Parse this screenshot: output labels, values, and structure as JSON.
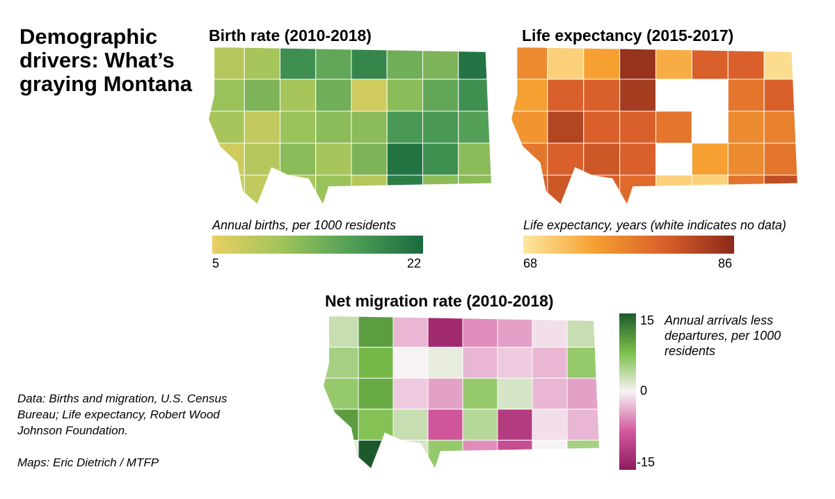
{
  "title": "Demographic drivers: What’s graying Montana",
  "birth_map": {
    "title": "Birth rate (2010-2018)",
    "legend_label": "Annual births, per 1000 residents",
    "min": "5",
    "max": "22",
    "colors": [
      "#e9cf62",
      "#9fc45a",
      "#4f9e57",
      "#1a6b3e"
    ],
    "grid": [
      [
        9,
        10,
        18,
        15,
        19,
        14,
        13,
        21
      ],
      [
        11,
        13,
        10,
        14,
        7,
        12,
        15,
        18
      ],
      [
        10,
        8,
        11,
        12,
        12,
        17,
        17,
        16
      ],
      [
        7,
        9,
        12,
        10,
        13,
        21,
        18,
        12
      ],
      [
        8,
        8,
        10,
        11,
        9,
        20,
        12,
        12
      ]
    ]
  },
  "life_map": {
    "title": "Life expectancy (2015-2017)",
    "legend_label": "Life expectancy, years (white indicates no data)",
    "min": "68",
    "max": "86",
    "colors": [
      "#fde8a0",
      "#f6a032",
      "#d9602a",
      "#8a2a1a"
    ],
    "grid": [
      [
        76,
        70,
        74,
        85,
        73,
        80,
        80,
        69
      ],
      [
        74,
        80,
        80,
        84,
        null,
        null,
        78,
        80
      ],
      [
        75,
        83,
        80,
        80,
        78,
        null,
        76,
        77
      ],
      [
        78,
        80,
        81,
        80,
        null,
        74,
        76,
        78
      ],
      [
        80,
        81,
        80,
        79,
        70,
        70,
        78,
        82
      ]
    ]
  },
  "migration_map": {
    "title": "Net migration rate (2010-2018)",
    "legend_label": "Annual arrivals less departures, per 1000 residents",
    "max": "15",
    "mid": "0",
    "min": "-15",
    "colors": [
      "#8e1a5c",
      "#d45aa0",
      "#f7f3f5",
      "#7cbf4a",
      "#1c5a2c"
    ],
    "grid": [
      [
        3,
        10,
        -3,
        -13,
        -5,
        -4,
        -1,
        3
      ],
      [
        5,
        8,
        0,
        1,
        -3,
        -2,
        -3,
        6
      ],
      [
        6,
        9,
        -2,
        -4,
        6,
        2,
        -3,
        -4
      ],
      [
        10,
        7,
        3,
        -8,
        4,
        -11,
        -1,
        -3
      ],
      [
        1,
        15,
        2,
        6,
        -5,
        -9,
        0,
        5
      ]
    ]
  },
  "source": {
    "data": "Data: Births and migration, U.S. Census Bureau; Life expectancy, Robert Wood Johnson Foundation.",
    "maps": "Maps: Eric Dietrich / MTFP"
  }
}
